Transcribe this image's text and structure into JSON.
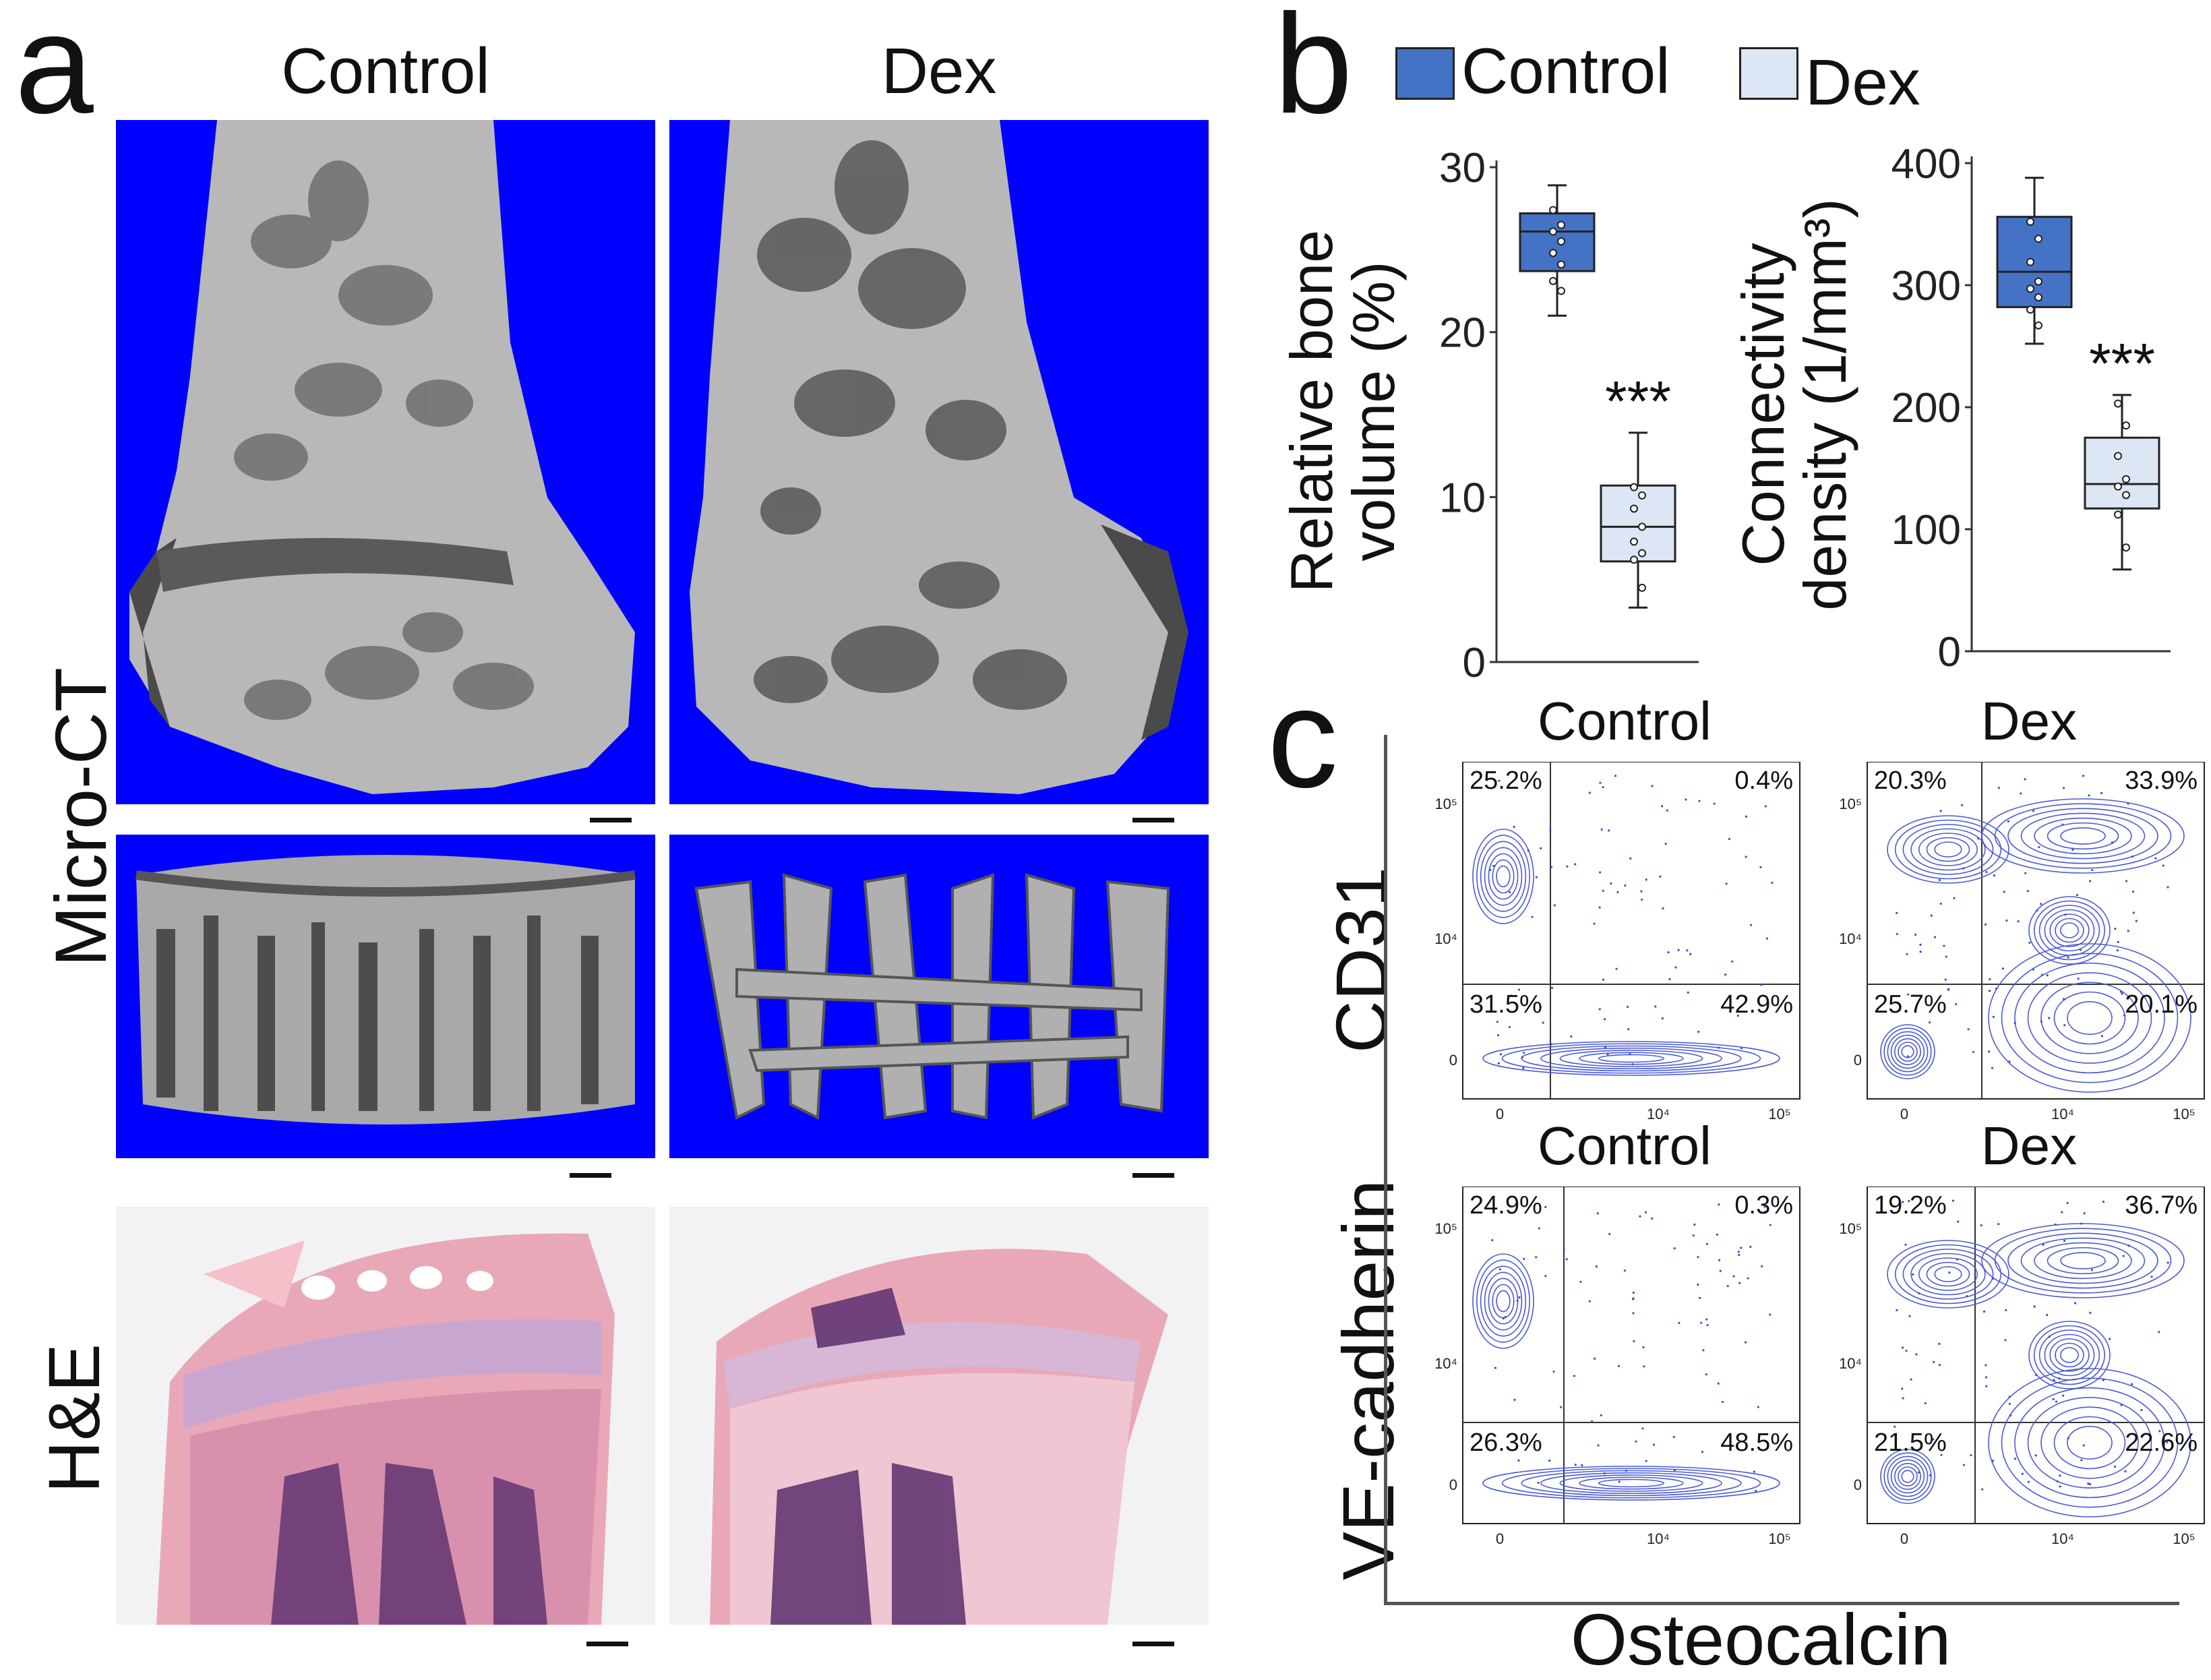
{
  "panel_a": {
    "label": "a",
    "col_control": "Control",
    "col_dex": "Dex",
    "row_microct": "Micro-CT",
    "row_he": "H&E"
  },
  "panel_b": {
    "label": "b",
    "legend": [
      {
        "label": "Control",
        "color": "#4472c4"
      },
      {
        "label": "Dex",
        "color": "#dde6f4"
      }
    ]
  },
  "panel_c": {
    "label": "c",
    "row_cd31": "CD31",
    "row_vecad": "VE-cadherin",
    "x_label": "Osteocalcin",
    "plots": [
      {
        "title": "Control",
        "ul": "25.2%",
        "ur": "0.4%",
        "ll": "31.5%",
        "lr": "42.9%"
      },
      {
        "title": "Dex",
        "ul": "20.3%",
        "ur": "33.9%",
        "ll": "25.7%",
        "lr": "20.1%"
      },
      {
        "title": "Control",
        "ul": "24.9%",
        "ur": "0.3%",
        "ll": "26.3%",
        "lr": "48.5%"
      },
      {
        "title": "Dex",
        "ul": "19.2%",
        "ur": "36.7%",
        "ll": "21.5%",
        "lr": "22.6%"
      }
    ],
    "ticks": {
      "y_hi": "10⁵",
      "y_mid": "10⁴",
      "y_zero": "0",
      "x_zero": "0",
      "x_mid": "10⁴",
      "x_hi": "10⁵"
    }
  },
  "chart_data": [
    {
      "type": "box",
      "ylabel": "Relative bone volume (%)",
      "ylim": [
        0,
        30
      ],
      "yticks": [
        "0",
        "10",
        "20",
        "30"
      ],
      "significance": "***",
      "series": [
        {
          "name": "Control",
          "min": 21,
          "q1": 23.7,
          "median": 26.1,
          "q3": 27.2,
          "max": 28.9,
          "points": [
            27.4,
            26.5,
            26.1,
            25.5,
            24.8,
            24.1,
            23.1,
            22.5
          ]
        },
        {
          "name": "Dex",
          "min": 3.3,
          "q1": 6.1,
          "median": 8.2,
          "q3": 10.7,
          "max": 13.9,
          "points": [
            10.6,
            10.1,
            9.3,
            8.2,
            7.3,
            6.6,
            6.2,
            4.5
          ]
        }
      ]
    },
    {
      "type": "box",
      "ylabel": "Connectivity density (1/mm³)",
      "ylim": [
        0,
        400
      ],
      "yticks": [
        "0",
        "100",
        "200",
        "300",
        "400"
      ],
      "significance": "***",
      "series": [
        {
          "name": "Control",
          "min": 252,
          "q1": 282,
          "median": 311,
          "q3": 356,
          "max": 388,
          "points": [
            352,
            338,
            319,
            303,
            297,
            290,
            280,
            267
          ]
        },
        {
          "name": "Dex",
          "min": 67,
          "q1": 117,
          "median": 137,
          "q3": 175,
          "max": 210,
          "points": [
            203,
            185,
            160,
            141,
            135,
            128,
            112,
            85
          ]
        }
      ]
    }
  ]
}
